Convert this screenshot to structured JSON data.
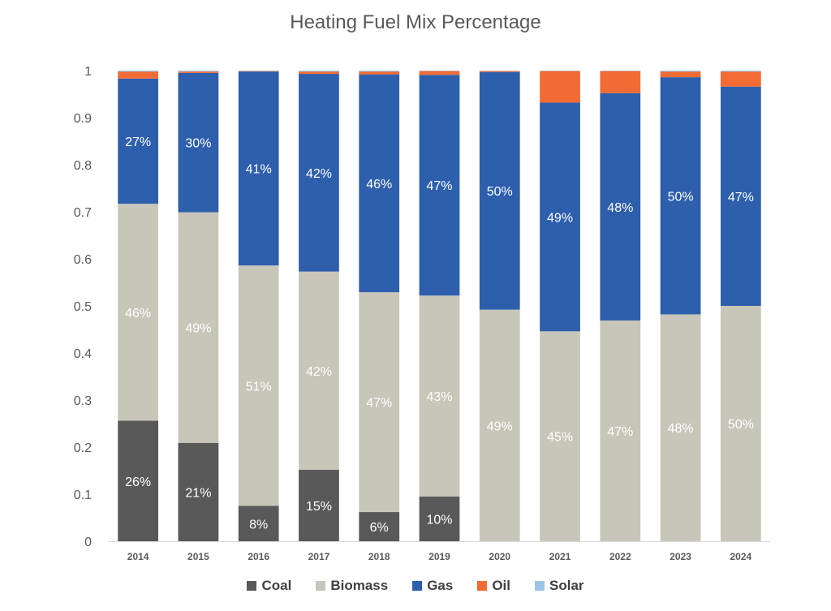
{
  "chart_data": {
    "type": "bar",
    "stacked": true,
    "title": "Heating Fuel Mix Percentage",
    "xlabel": "",
    "ylabel": "",
    "ylim": [
      0,
      1
    ],
    "yticks": [
      "0",
      "0.1",
      "0.2",
      "0.3",
      "0.4",
      "0.5",
      "0.6",
      "0.7",
      "0.8",
      "0.9",
      "1"
    ],
    "grid": false,
    "legend_position": "bottom",
    "categories": [
      "2014",
      "2015",
      "2016",
      "2017",
      "2018",
      "2019",
      "2020",
      "2021",
      "2022",
      "2023",
      "2024"
    ],
    "series": [
      {
        "name": "Coal",
        "color": "#595959",
        "values": [
          0.256,
          0.209,
          0.075,
          0.152,
          0.062,
          0.095,
          0,
          0,
          0,
          0,
          0
        ],
        "labels": [
          "26%",
          "21%",
          "8%",
          "15%",
          "6%",
          "10%",
          "",
          "",
          "",
          "",
          ""
        ]
      },
      {
        "name": "Biomass",
        "color": "#c8c6b9",
        "values": [
          0.461,
          0.49,
          0.511,
          0.421,
          0.467,
          0.427,
          0.492,
          0.446,
          0.469,
          0.482,
          0.5
        ],
        "labels": [
          "46%",
          "49%",
          "51%",
          "42%",
          "47%",
          "43%",
          "49%",
          "45%",
          "47%",
          "48%",
          "50%"
        ]
      },
      {
        "name": "Gas",
        "color": "#2e5fad",
        "values": [
          0.266,
          0.296,
          0.412,
          0.42,
          0.463,
          0.469,
          0.505,
          0.486,
          0.483,
          0.504,
          0.466
        ],
        "labels": [
          "27%",
          "30%",
          "41%",
          "42%",
          "46%",
          "47%",
          "50%",
          "49%",
          "48%",
          "50%",
          "47%"
        ]
      },
      {
        "name": "Oil",
        "color": "#f26b35",
        "values": [
          0.015,
          0.003,
          0.001,
          0.005,
          0.006,
          0.008,
          0.002,
          0.067,
          0.047,
          0.012,
          0.032
        ],
        "labels": [
          "",
          "",
          "",
          "",
          "",
          "",
          "",
          "",
          "",
          "",
          ""
        ]
      },
      {
        "name": "Solar",
        "color": "#9dc3e6",
        "values": [
          0.002,
          0.002,
          0.001,
          0.002,
          0.002,
          0.001,
          0.001,
          0.001,
          0.001,
          0.002,
          0.002
        ],
        "labels": [
          "",
          "",
          "",
          "",
          "",
          "",
          "",
          "",
          "",
          "",
          ""
        ]
      }
    ]
  }
}
